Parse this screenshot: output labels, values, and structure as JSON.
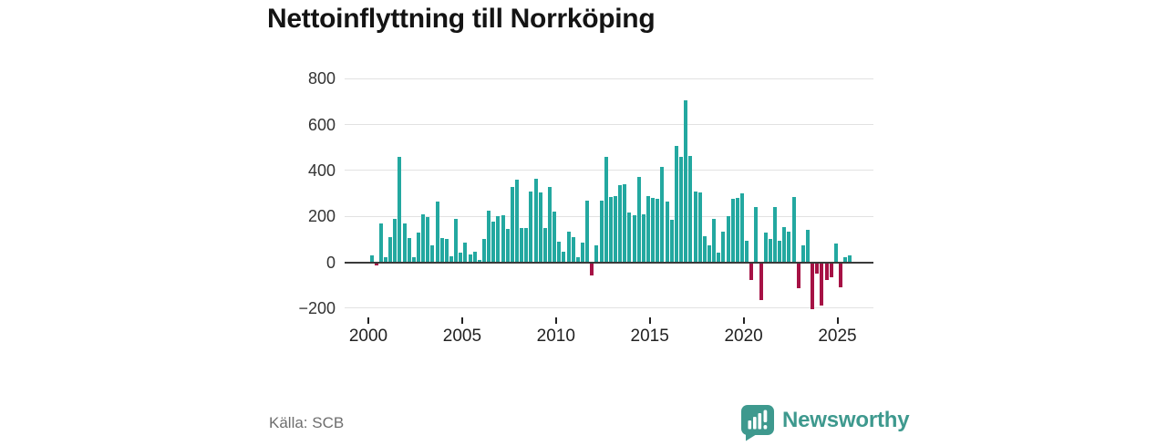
{
  "header": {
    "title": "Nettoinflyttning till Norrköping"
  },
  "footer": {
    "source_label": "Källa: SCB",
    "brand": {
      "name": "Newsworthy",
      "icon": "newsworthy-speech-bubble-bar-chart-icon"
    }
  },
  "colors": {
    "positive_bar": "#23a8a0",
    "negative_bar": "#a61245",
    "gridline": "#e2e2e2",
    "zero_line": "#3a3a3a",
    "brand_teal": "#3e998e",
    "title_text": "#141414",
    "axis_text": "#333333",
    "source_text": "#6e6e6e"
  },
  "chart_data": {
    "type": "bar",
    "title": "Nettoinflyttning till Norrköping",
    "frequency": "quarterly",
    "start_period": "2000-Q1",
    "end_period": "2025-Q3",
    "values": [
      30,
      -10,
      170,
      20,
      110,
      190,
      460,
      170,
      105,
      20,
      130,
      210,
      195,
      75,
      265,
      105,
      100,
      25,
      190,
      40,
      85,
      35,
      45,
      10,
      100,
      225,
      175,
      200,
      205,
      145,
      330,
      360,
      150,
      150,
      310,
      365,
      305,
      150,
      330,
      220,
      90,
      45,
      135,
      110,
      20,
      85,
      270,
      -55,
      75,
      270,
      460,
      285,
      290,
      335,
      340,
      215,
      205,
      370,
      210,
      290,
      280,
      275,
      415,
      265,
      185,
      505,
      460,
      705,
      465,
      310,
      305,
      115,
      75,
      190,
      40,
      135,
      200,
      275,
      280,
      300,
      95,
      -75,
      240,
      -160,
      130,
      100,
      240,
      95,
      155,
      135,
      285,
      -110,
      75,
      140,
      -200,
      -45,
      -185,
      -75,
      -60,
      80,
      -105,
      20,
      30
    ],
    "x_tick_labels": [
      "2000",
      "2005",
      "2010",
      "2015",
      "2020",
      "2025"
    ],
    "y_tick_values": [
      800,
      600,
      400,
      200,
      0,
      -200
    ],
    "y_tick_labels": [
      "800",
      "600",
      "400",
      "200",
      "0",
      "−200"
    ],
    "ylim": [
      -230,
      860
    ],
    "grid": true,
    "legend": "none",
    "positive_color": "#23a8a0",
    "negative_color": "#a61245"
  }
}
